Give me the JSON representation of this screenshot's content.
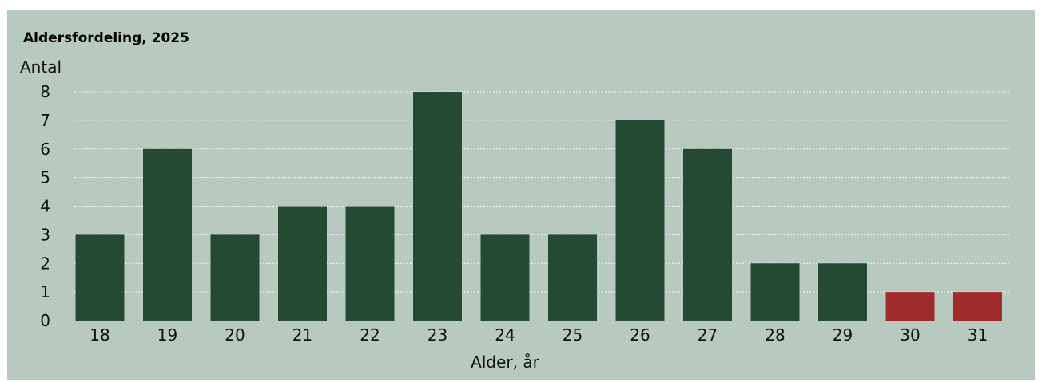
{
  "chart_data": {
    "type": "bar",
    "title": "Aldersfordeling, 2025",
    "ylabel": "Antal",
    "xlabel": "Alder, år",
    "categories": [
      "18",
      "19",
      "20",
      "21",
      "22",
      "23",
      "24",
      "25",
      "26",
      "27",
      "28",
      "29",
      "30",
      "31"
    ],
    "values": [
      3,
      6,
      3,
      4,
      4,
      8,
      3,
      3,
      7,
      6,
      2,
      2,
      1,
      1
    ],
    "yticks": [
      "0",
      "1",
      "2",
      "3",
      "4",
      "5",
      "6",
      "7",
      "8"
    ],
    "ylim": [
      0,
      8
    ],
    "grid": true,
    "colors": {
      "background": "#b8c9bf",
      "bar_default": "#244a33",
      "bar_highlight": "#a02c2c",
      "grid": "#ffffff"
    },
    "highlight_categories": [
      "30",
      "31"
    ]
  }
}
